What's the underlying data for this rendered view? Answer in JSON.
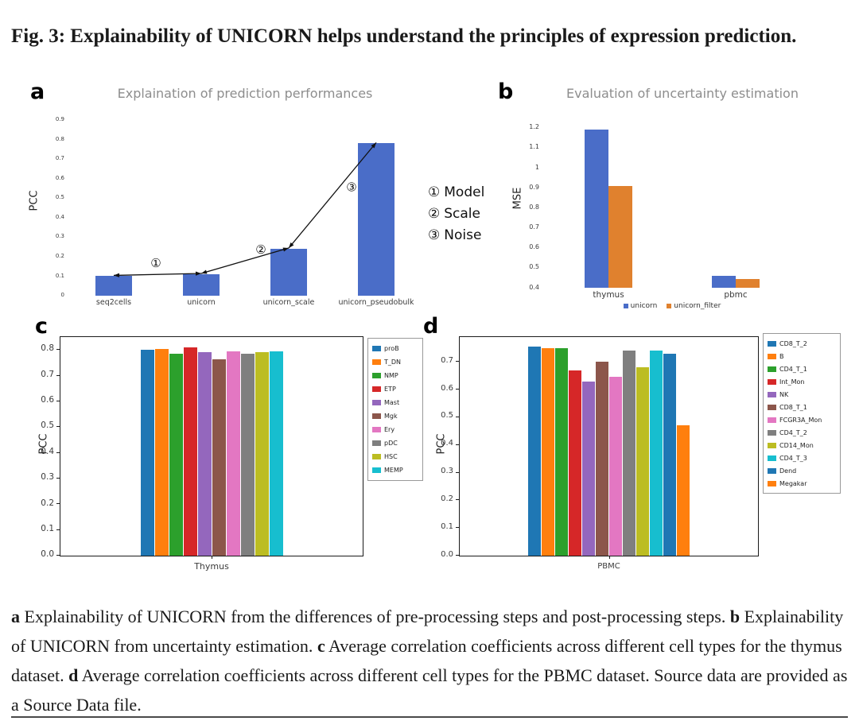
{
  "figure_title": "Fig. 3: Explainability of UNICORN helps understand the principles of expression prediction.",
  "caption": {
    "a_label": "a",
    "a_text": " Explainability of UNICORN from the differences of pre-processing steps and post-processing steps. ",
    "b_label": "b",
    "b_text": " Explainability of UNICORN from uncertainty estimation. ",
    "c_label": "c",
    "c_text": " Average correlation coefficients across different cell types for the thymus dataset. ",
    "d_label": "d",
    "d_text": " Average correlation coefficients across different cell types for the PBMC dataset. Source data are provided as a Source Data file."
  },
  "chart_data": [
    {
      "panel": "a",
      "type": "bar",
      "title": "Explaination of prediction performances",
      "ylabel": "PCC",
      "categories": [
        "seq2cells",
        "unicorn",
        "unicorn_scale",
        "unicorn_pseudobulk"
      ],
      "values": [
        0.1,
        0.11,
        0.24,
        0.78
      ],
      "bar_color": "#4a6dc8",
      "ylim": [
        0,
        0.92
      ],
      "ytick_vals": [
        0,
        0.1,
        0.2,
        0.3,
        0.4,
        0.5,
        0.6,
        0.7,
        0.8,
        0.9
      ],
      "ytick_labels": [
        "0",
        "0.1",
        "0.2",
        "0.3",
        "0.4",
        "0.5",
        "0.6",
        "0.7",
        "0.8",
        "0.9"
      ],
      "annotations": [
        {
          "symbol": "①",
          "label": "Model"
        },
        {
          "symbol": "②",
          "label": "Scale"
        },
        {
          "symbol": "③",
          "label": "Noise"
        }
      ],
      "legend_position": "right"
    },
    {
      "panel": "b",
      "type": "grouped-bar",
      "title": "Evaluation of uncertainty estimation",
      "ylabel": "MSE",
      "categories": [
        "thymus",
        "pbmc"
      ],
      "series": [
        {
          "name": "unicorn",
          "color": "#4a6dc8",
          "values": [
            1.19,
            0.46
          ]
        },
        {
          "name": "unicorn_filter",
          "color": "#e0812e",
          "values": [
            0.91,
            0.445
          ]
        }
      ],
      "ylim": [
        0.4,
        1.25
      ],
      "ytick_vals": [
        0.4,
        0.5,
        0.6,
        0.7,
        0.8,
        0.9,
        1.0,
        1.1,
        1.2
      ],
      "ytick_labels": [
        "0.4",
        "0.5",
        "0.6",
        "0.7",
        "0.8",
        "0.9",
        "1",
        "1.1",
        "1.2"
      ],
      "legend_position": "bottom"
    },
    {
      "panel": "c",
      "type": "grouped-bar",
      "title": "",
      "ylabel": "PCC",
      "categories": [
        "Thymus"
      ],
      "series": [
        {
          "name": "proB",
          "color": "#1f77b4",
          "values": [
            0.8
          ]
        },
        {
          "name": "T_DN",
          "color": "#ff7f0e",
          "values": [
            0.805
          ]
        },
        {
          "name": "NMP",
          "color": "#2ca02c",
          "values": [
            0.785
          ]
        },
        {
          "name": "ETP",
          "color": "#d62728",
          "values": [
            0.81
          ]
        },
        {
          "name": "Mast",
          "color": "#9467bd",
          "values": [
            0.79
          ]
        },
        {
          "name": "Mgk",
          "color": "#8c564b",
          "values": [
            0.765
          ]
        },
        {
          "name": "Ery",
          "color": "#e377c2",
          "values": [
            0.795
          ]
        },
        {
          "name": "pDC",
          "color": "#7f7f7f",
          "values": [
            0.785
          ]
        },
        {
          "name": "HSC",
          "color": "#bcbd22",
          "values": [
            0.79
          ]
        },
        {
          "name": "MEMP",
          "color": "#17becf",
          "values": [
            0.795
          ]
        }
      ],
      "ylim": [
        0,
        0.85
      ],
      "ytick_vals": [
        0,
        0.1,
        0.2,
        0.3,
        0.4,
        0.5,
        0.6,
        0.7,
        0.8
      ],
      "ytick_labels": [
        "0.0",
        "0.1",
        "0.2",
        "0.3",
        "0.4",
        "0.5",
        "0.6",
        "0.7",
        "0.8"
      ],
      "legend_position": "right-box"
    },
    {
      "panel": "d",
      "type": "grouped-bar",
      "title": "",
      "ylabel": "PCC",
      "categories": [
        "PBMC"
      ],
      "series": [
        {
          "name": "CD8_T_2",
          "color": "#1f77b4",
          "values": [
            0.755
          ]
        },
        {
          "name": "B",
          "color": "#ff7f0e",
          "values": [
            0.75
          ]
        },
        {
          "name": "CD4_T_1",
          "color": "#2ca02c",
          "values": [
            0.75
          ]
        },
        {
          "name": "Int_Mon",
          "color": "#d62728",
          "values": [
            0.67
          ]
        },
        {
          "name": "NK",
          "color": "#9467bd",
          "values": [
            0.63
          ]
        },
        {
          "name": "CD8_T_1",
          "color": "#8c564b",
          "values": [
            0.7
          ]
        },
        {
          "name": "FCGR3A_Mon",
          "color": "#e377c2",
          "values": [
            0.645
          ]
        },
        {
          "name": "CD4_T_2",
          "color": "#7f7f7f",
          "values": [
            0.74
          ]
        },
        {
          "name": "CD14_Mon",
          "color": "#bcbd22",
          "values": [
            0.68
          ]
        },
        {
          "name": "CD4_T_3",
          "color": "#17becf",
          "values": [
            0.74
          ]
        },
        {
          "name": "Dend",
          "color": "#1f77b4",
          "values": [
            0.73
          ]
        },
        {
          "name": "Megakar",
          "color": "#ff7f0e",
          "values": [
            0.47
          ]
        }
      ],
      "ylim": [
        0,
        0.79
      ],
      "ytick_vals": [
        0,
        0.1,
        0.2,
        0.3,
        0.4,
        0.5,
        0.6,
        0.7
      ],
      "ytick_labels": [
        "0.0",
        "0.1",
        "0.2",
        "0.3",
        "0.4",
        "0.5",
        "0.6",
        "0.7"
      ],
      "legend_position": "right-box"
    }
  ]
}
